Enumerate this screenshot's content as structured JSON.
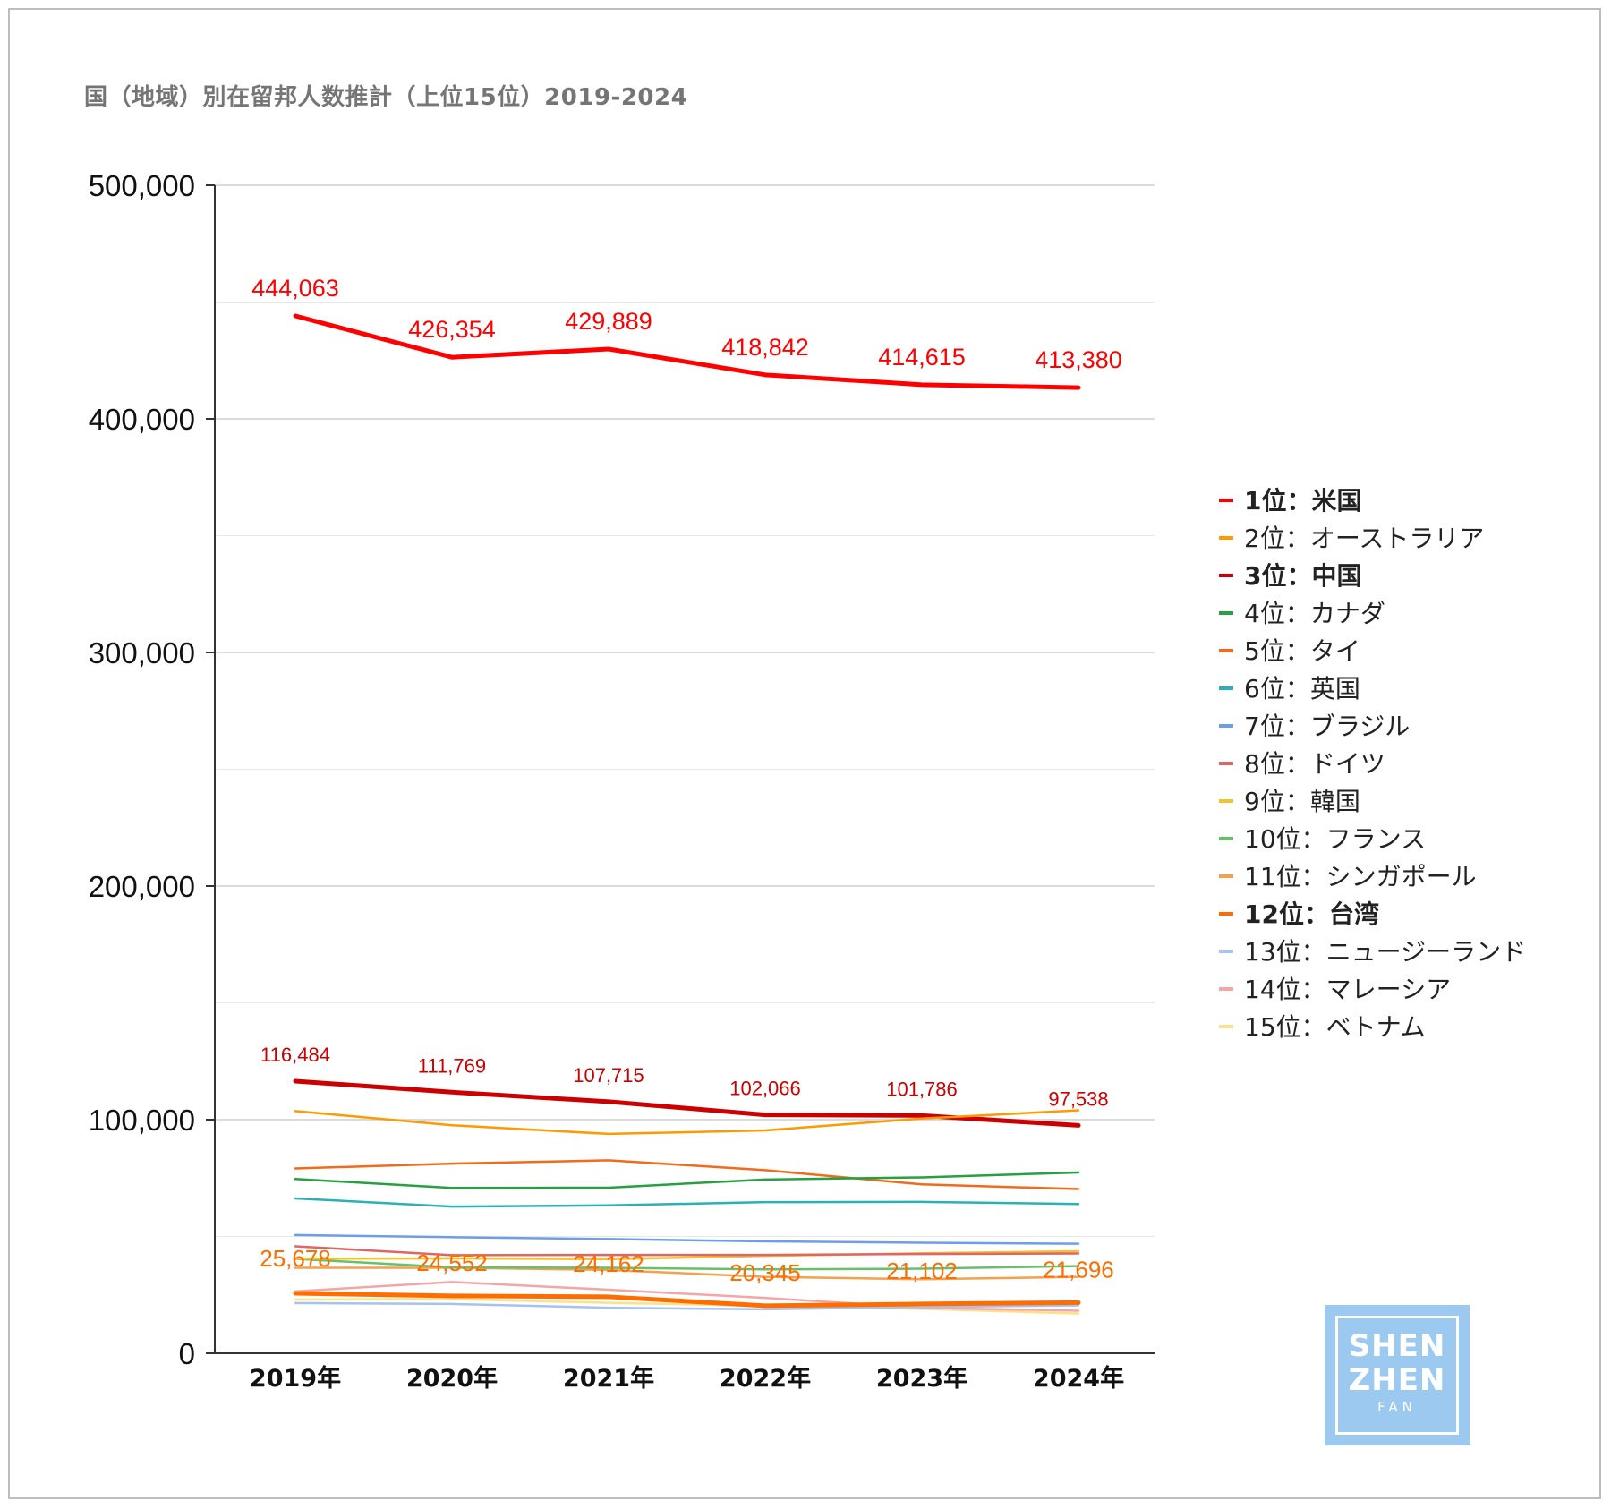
{
  "chart_data": {
    "type": "line",
    "title": "国（地域）別在留邦人数推計（上位15位）2019-2024",
    "xlabel": "",
    "ylabel": "",
    "categories": [
      "2019年",
      "2020年",
      "2021年",
      "2022年",
      "2023年",
      "2024年"
    ],
    "ylim": [
      0,
      500000
    ],
    "yticks": [
      0,
      100000,
      200000,
      300000,
      400000,
      500000
    ],
    "ytick_labels": [
      "0",
      "100,000",
      "200,000",
      "300,000",
      "400,000",
      "500,000"
    ],
    "grid": true,
    "legend_position": "right",
    "series": [
      {
        "name": "1位：米国",
        "color": "#ff0000",
        "bold": true,
        "values": [
          444063,
          426354,
          429889,
          418842,
          414615,
          413380
        ],
        "labels": [
          "444,063",
          "426,354",
          "429,889",
          "418,842",
          "414,615",
          "413,380"
        ]
      },
      {
        "name": "2位：オーストラリア",
        "color": "#ff9900",
        "bold": false,
        "values": [
          103700,
          97600,
          93900,
          95400,
          100500,
          104000
        ],
        "labels": []
      },
      {
        "name": "3位：中国",
        "color": "#cc0000",
        "bold": true,
        "values": [
          116484,
          111769,
          107715,
          102066,
          101786,
          97538
        ],
        "labels": [
          "116,484",
          "111,769",
          "107,715",
          "102,066",
          "101,786",
          "97,538"
        ]
      },
      {
        "name": "4位：カナダ",
        "color": "#27a041",
        "bold": false,
        "values": [
          74600,
          70800,
          70900,
          74400,
          75300,
          77400
        ],
        "labels": []
      },
      {
        "name": "5位：タイ",
        "color": "#f26a1b",
        "bold": false,
        "values": [
          79100,
          81200,
          82600,
          78400,
          72300,
          70300
        ],
        "labels": []
      },
      {
        "name": "6位：英国",
        "color": "#2bb0b5",
        "bold": false,
        "values": [
          66300,
          62800,
          63300,
          64700,
          64800,
          63900
        ],
        "labels": []
      },
      {
        "name": "7位：ブラジル",
        "color": "#6d9eeb",
        "bold": false,
        "values": [
          50600,
          49700,
          48900,
          47900,
          47300,
          46900
        ],
        "labels": []
      },
      {
        "name": "8位：ドイツ",
        "color": "#e06666",
        "bold": false,
        "values": [
          45800,
          42000,
          42100,
          42100,
          42500,
          42700
        ],
        "labels": []
      },
      {
        "name": "9位：韓国",
        "color": "#f1c232",
        "bold": false,
        "values": [
          40500,
          40600,
          40300,
          41700,
          42800,
          43700
        ],
        "labels": []
      },
      {
        "name": "10位：フランス",
        "color": "#6abf6a",
        "bold": false,
        "values": [
          40400,
          36800,
          36600,
          35900,
          36200,
          37300
        ],
        "labels": []
      },
      {
        "name": "11位：シンガポール",
        "color": "#f6a04d",
        "bold": false,
        "values": [
          36600,
          36600,
          35700,
          32700,
          31700,
          32700
        ],
        "labels": []
      },
      {
        "name": "12位：台湾",
        "color": "#ff6d01",
        "bold": true,
        "values": [
          25678,
          24552,
          24162,
          20345,
          21102,
          21696
        ],
        "labels": [
          "25,678",
          "24,552",
          "24,162",
          "20,345",
          "21,102",
          "21,696"
        ]
      },
      {
        "name": "13位：ニュージーランド",
        "color": "#a4c2f4",
        "bold": false,
        "values": [
          21500,
          21100,
          19500,
          18800,
          19800,
          20500
        ],
        "labels": []
      },
      {
        "name": "14位：マレーシア",
        "color": "#f4a6a6",
        "bold": false,
        "values": [
          26500,
          30500,
          27200,
          23700,
          19500,
          18200
        ],
        "labels": []
      },
      {
        "name": "15位：ベトナム",
        "color": "#ffe08a",
        "bold": false,
        "values": [
          23000,
          23200,
          21600,
          20300,
          19000,
          17000
        ],
        "labels": []
      }
    ]
  },
  "watermark": {
    "line1": "SHEN",
    "line2": "ZHEN",
    "line3": "FAN"
  }
}
